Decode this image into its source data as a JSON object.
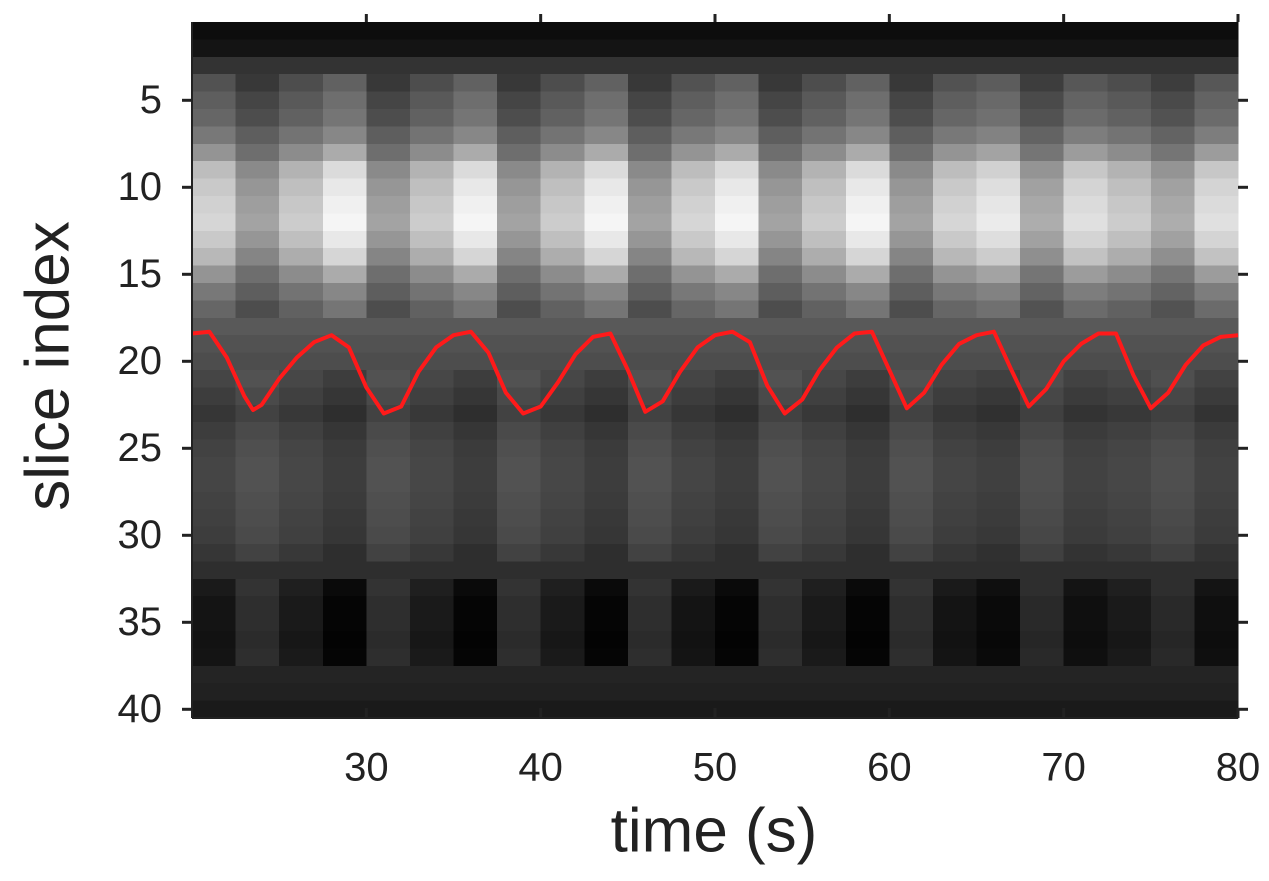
{
  "chart_data": {
    "type": "heatmap",
    "xlabel": "time (s)",
    "ylabel": "slice index",
    "colormap": "gray",
    "zlim": [
      0,
      100
    ],
    "x": [
      21.25,
      23.75,
      26.25,
      28.75,
      31.25,
      33.75,
      36.25,
      38.75,
      41.25,
      43.75,
      46.25,
      48.75,
      51.25,
      53.75,
      56.25,
      58.75,
      61.25,
      63.75,
      66.25,
      68.75,
      71.25,
      73.75,
      76.25,
      78.75
    ],
    "y": [
      1,
      2,
      3,
      4,
      5,
      6,
      7,
      8,
      9,
      10,
      11,
      12,
      13,
      14,
      15,
      16,
      17,
      18,
      19,
      20,
      21,
      22,
      23,
      24,
      25,
      26,
      27,
      28,
      29,
      30,
      31,
      32,
      33,
      34,
      35,
      36,
      37,
      38,
      39,
      40
    ],
    "z": [
      [
        5,
        5,
        5,
        5,
        5,
        5,
        5,
        5,
        5,
        5,
        5,
        5,
        5,
        5,
        5,
        5,
        5,
        5,
        5,
        5,
        5,
        5,
        5,
        5
      ],
      [
        8,
        8,
        8,
        8,
        8,
        8,
        8,
        8,
        8,
        8,
        8,
        8,
        8,
        8,
        8,
        8,
        8,
        8,
        8,
        8,
        8,
        8,
        8,
        8
      ],
      [
        20,
        20,
        20,
        20,
        20,
        20,
        20,
        20,
        20,
        20,
        20,
        20,
        20,
        20,
        20,
        20,
        20,
        20,
        20,
        20,
        20,
        20,
        20,
        20
      ],
      [
        32,
        22,
        30,
        38,
        22,
        30,
        38,
        22,
        30,
        38,
        22,
        32,
        38,
        22,
        30,
        38,
        22,
        32,
        36,
        24,
        34,
        30,
        24,
        34
      ],
      [
        37,
        27,
        35,
        43,
        27,
        35,
        43,
        27,
        35,
        43,
        27,
        37,
        43,
        27,
        35,
        43,
        27,
        37,
        41,
        29,
        39,
        35,
        29,
        39
      ],
      [
        40,
        30,
        38,
        46,
        30,
        38,
        46,
        30,
        38,
        46,
        30,
        40,
        46,
        30,
        38,
        46,
        30,
        40,
        44,
        32,
        42,
        38,
        32,
        42
      ],
      [
        47,
        37,
        45,
        53,
        37,
        45,
        53,
        37,
        45,
        53,
        37,
        47,
        53,
        37,
        45,
        53,
        37,
        47,
        51,
        39,
        49,
        45,
        39,
        49
      ],
      [
        58,
        43,
        55,
        67,
        43,
        55,
        67,
        43,
        55,
        67,
        43,
        58,
        67,
        43,
        55,
        67,
        43,
        58,
        64,
        46,
        61,
        55,
        46,
        61
      ],
      [
        74,
        54,
        70,
        86,
        54,
        70,
        86,
        54,
        70,
        86,
        54,
        74,
        86,
        54,
        70,
        86,
        54,
        74,
        82,
        58,
        78,
        70,
        58,
        78
      ],
      [
        79,
        59,
        75,
        91,
        59,
        75,
        91,
        59,
        75,
        91,
        59,
        79,
        91,
        59,
        75,
        91,
        59,
        79,
        87,
        63,
        83,
        75,
        63,
        83
      ],
      [
        82,
        62,
        78,
        94,
        62,
        78,
        94,
        62,
        78,
        94,
        62,
        82,
        94,
        62,
        78,
        94,
        62,
        82,
        90,
        66,
        86,
        78,
        66,
        86
      ],
      [
        84,
        64,
        80,
        96,
        64,
        80,
        96,
        64,
        80,
        96,
        64,
        84,
        96,
        64,
        80,
        96,
        64,
        84,
        92,
        68,
        88,
        80,
        68,
        88
      ],
      [
        79,
        59,
        75,
        91,
        59,
        75,
        91,
        59,
        75,
        91,
        59,
        79,
        91,
        59,
        75,
        91,
        59,
        79,
        87,
        63,
        83,
        75,
        63,
        83
      ],
      [
        72,
        52,
        68,
        84,
        52,
        68,
        84,
        52,
        68,
        84,
        52,
        72,
        84,
        52,
        68,
        84,
        52,
        72,
        80,
        56,
        76,
        68,
        56,
        76
      ],
      [
        58,
        43,
        55,
        67,
        43,
        55,
        67,
        43,
        55,
        67,
        43,
        58,
        67,
        43,
        55,
        67,
        43,
        58,
        64,
        46,
        61,
        55,
        46,
        61
      ],
      [
        47,
        37,
        45,
        53,
        37,
        45,
        53,
        37,
        45,
        53,
        37,
        47,
        53,
        37,
        45,
        53,
        37,
        47,
        51,
        39,
        49,
        45,
        39,
        49
      ],
      [
        40,
        30,
        38,
        46,
        30,
        38,
        46,
        30,
        38,
        46,
        30,
        40,
        46,
        30,
        38,
        46,
        30,
        40,
        44,
        32,
        42,
        38,
        32,
        42
      ],
      [
        35,
        35,
        35,
        35,
        35,
        35,
        35,
        35,
        35,
        35,
        35,
        35,
        35,
        35,
        35,
        35,
        35,
        35,
        35,
        35,
        35,
        35,
        35,
        35
      ],
      [
        32,
        32,
        32,
        32,
        32,
        32,
        32,
        32,
        32,
        32,
        32,
        32,
        32,
        32,
        32,
        32,
        32,
        32,
        32,
        32,
        32,
        32,
        32,
        32
      ],
      [
        30,
        30,
        30,
        30,
        30,
        30,
        30,
        30,
        30,
        30,
        30,
        30,
        30,
        30,
        30,
        30,
        30,
        30,
        30,
        30,
        30,
        30,
        30,
        30
      ],
      [
        27,
        32,
        28,
        24,
        32,
        28,
        24,
        32,
        28,
        24,
        32,
        27,
        24,
        32,
        28,
        24,
        32,
        27,
        25,
        31,
        26,
        28,
        31,
        26
      ],
      [
        24,
        29,
        25,
        21,
        29,
        25,
        21,
        29,
        25,
        21,
        29,
        24,
        21,
        29,
        25,
        21,
        29,
        24,
        22,
        28,
        23,
        25,
        28,
        23
      ],
      [
        21,
        26,
        22,
        18,
        26,
        22,
        18,
        26,
        22,
        18,
        26,
        21,
        18,
        26,
        22,
        18,
        26,
        21,
        19,
        25,
        20,
        22,
        25,
        20
      ],
      [
        24,
        29,
        25,
        21,
        29,
        25,
        21,
        29,
        25,
        21,
        29,
        24,
        21,
        29,
        25,
        21,
        29,
        24,
        22,
        28,
        23,
        25,
        28,
        23
      ],
      [
        26,
        31,
        27,
        23,
        31,
        27,
        23,
        31,
        27,
        23,
        31,
        26,
        23,
        31,
        27,
        23,
        31,
        26,
        24,
        30,
        25,
        27,
        30,
        25
      ],
      [
        27,
        32,
        28,
        24,
        32,
        28,
        24,
        32,
        28,
        24,
        32,
        27,
        24,
        32,
        28,
        24,
        32,
        27,
        25,
        31,
        26,
        28,
        31,
        26
      ],
      [
        27,
        32,
        28,
        24,
        32,
        28,
        24,
        32,
        28,
        24,
        32,
        27,
        24,
        32,
        28,
        24,
        32,
        27,
        25,
        31,
        26,
        28,
        31,
        26
      ],
      [
        26,
        31,
        27,
        23,
        31,
        27,
        23,
        31,
        27,
        23,
        31,
        26,
        23,
        31,
        27,
        23,
        31,
        26,
        24,
        30,
        25,
        27,
        30,
        25
      ],
      [
        25,
        30,
        26,
        22,
        30,
        26,
        22,
        30,
        26,
        22,
        30,
        25,
        22,
        30,
        26,
        22,
        30,
        25,
        23,
        29,
        24,
        26,
        29,
        24
      ],
      [
        24,
        29,
        25,
        21,
        29,
        25,
        21,
        29,
        25,
        21,
        29,
        24,
        21,
        29,
        25,
        21,
        29,
        24,
        22,
        28,
        23,
        25,
        28,
        23
      ],
      [
        21,
        26,
        22,
        18,
        26,
        22,
        18,
        26,
        22,
        18,
        26,
        21,
        18,
        26,
        22,
        18,
        26,
        21,
        19,
        25,
        20,
        22,
        25,
        20
      ],
      [
        18,
        18,
        18,
        18,
        18,
        18,
        18,
        18,
        18,
        18,
        18,
        18,
        18,
        18,
        18,
        18,
        18,
        18,
        18,
        18,
        18,
        18,
        18,
        18
      ],
      [
        10,
        20,
        12,
        4,
        20,
        12,
        4,
        20,
        12,
        4,
        20,
        10,
        4,
        20,
        12,
        4,
        20,
        10,
        6,
        18,
        8,
        12,
        18,
        8
      ],
      [
        8,
        18,
        10,
        2,
        18,
        10,
        2,
        18,
        10,
        2,
        18,
        8,
        2,
        18,
        10,
        2,
        18,
        8,
        4,
        16,
        6,
        10,
        16,
        6
      ],
      [
        8,
        18,
        10,
        2,
        18,
        10,
        2,
        18,
        10,
        2,
        18,
        8,
        2,
        18,
        10,
        2,
        18,
        8,
        4,
        16,
        6,
        10,
        16,
        6
      ],
      [
        7,
        17,
        9,
        1,
        17,
        9,
        1,
        17,
        9,
        1,
        17,
        7,
        1,
        17,
        9,
        1,
        17,
        7,
        3,
        15,
        5,
        9,
        15,
        5
      ],
      [
        8,
        18,
        10,
        2,
        18,
        10,
        2,
        18,
        10,
        2,
        18,
        8,
        2,
        18,
        10,
        2,
        18,
        8,
        4,
        16,
        6,
        10,
        16,
        6
      ],
      [
        14,
        14,
        14,
        14,
        14,
        14,
        14,
        14,
        14,
        14,
        14,
        14,
        14,
        14,
        14,
        14,
        14,
        14,
        14,
        14,
        14,
        14,
        14,
        14
      ],
      [
        13,
        13,
        13,
        13,
        13,
        13,
        13,
        13,
        13,
        13,
        13,
        13,
        13,
        13,
        13,
        13,
        13,
        13,
        13,
        13,
        13,
        13,
        13,
        13
      ],
      [
        10,
        10,
        10,
        10,
        10,
        10,
        10,
        10,
        10,
        10,
        10,
        10,
        10,
        10,
        10,
        10,
        10,
        10,
        10,
        10,
        10,
        10,
        10,
        10
      ]
    ],
    "series": [
      {
        "color": "#ff1a1a",
        "x": [
          20,
          21,
          22,
          23,
          23.5,
          24,
          25,
          26,
          27,
          28,
          29,
          30,
          31,
          32,
          33,
          34,
          35,
          36,
          37,
          38,
          39,
          40,
          41,
          42,
          43,
          44,
          45,
          46,
          47,
          48,
          49,
          50,
          51,
          52,
          53,
          54,
          55,
          56,
          57,
          58,
          59,
          60,
          61,
          62,
          63,
          64,
          65,
          66,
          67,
          68,
          69,
          70,
          71,
          72,
          73,
          74,
          75,
          76,
          77,
          78,
          79,
          80
        ],
        "values": [
          18.4,
          18.3,
          19.8,
          22,
          22.8,
          22.5,
          21,
          19.8,
          18.9,
          18.5,
          19.2,
          21.5,
          23,
          22.6,
          20.6,
          19.2,
          18.5,
          18.3,
          19.5,
          21.8,
          23,
          22.6,
          21.2,
          19.6,
          18.6,
          18.4,
          20.5,
          22.9,
          22.3,
          20.6,
          19.2,
          18.5,
          18.3,
          18.9,
          21.4,
          23,
          22.2,
          20.5,
          19.2,
          18.4,
          18.3,
          20.5,
          22.7,
          21.8,
          20.2,
          19,
          18.5,
          18.3,
          20.5,
          22.6,
          21.6,
          20,
          19,
          18.4,
          18.4,
          20.8,
          22.7,
          21.8,
          20.2,
          19.1,
          18.6,
          18.5
        ]
      }
    ],
    "xlim": [
      20,
      80
    ],
    "ylim": [
      0.5,
      40.5
    ],
    "y_inverted": true,
    "xticks": [
      30,
      40,
      50,
      60,
      70,
      80
    ],
    "yticks": [
      5,
      10,
      15,
      20,
      25,
      30,
      35,
      40
    ]
  }
}
